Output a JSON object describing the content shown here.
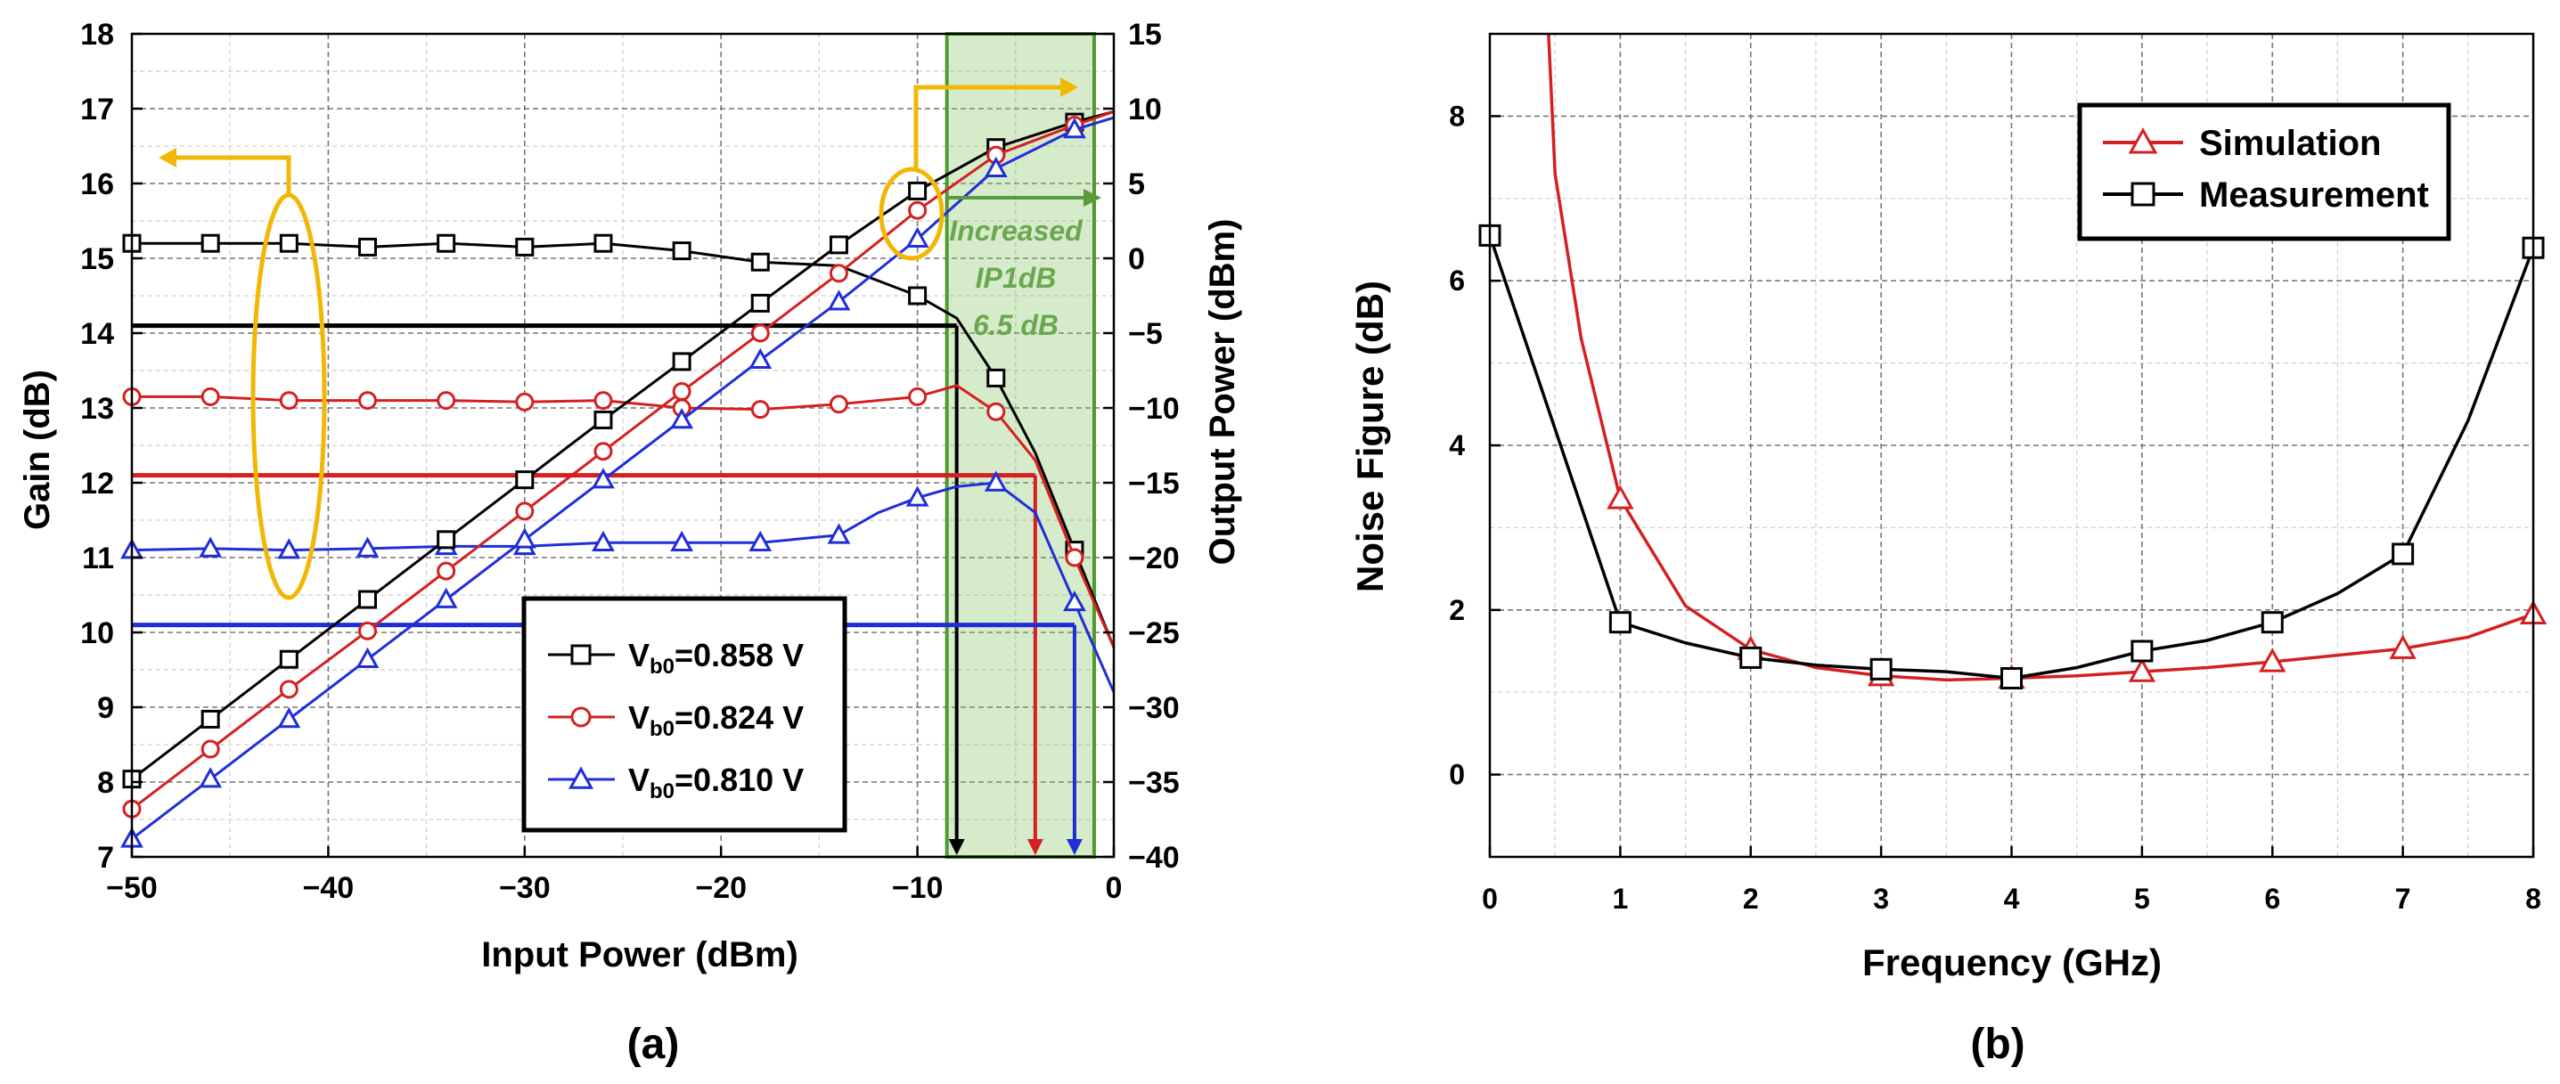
{
  "chart_data": [
    {
      "panel": "a",
      "panel_label": "(a)",
      "type": "line",
      "xlabel": "Input Power (dBm)",
      "ylabel_left": "Gain (dB)",
      "ylabel_right": "Output Power (dBm)",
      "xlim": [
        -50,
        0
      ],
      "ylim_left": [
        7,
        18
      ],
      "ylim_right": [
        -40,
        15
      ],
      "xticks": [
        -50,
        -40,
        -30,
        -20,
        -10,
        0
      ],
      "yticks_left": [
        7,
        8,
        9,
        10,
        11,
        12,
        13,
        14,
        15,
        16,
        17,
        18
      ],
      "yticks_right": [
        -40,
        -35,
        -30,
        -25,
        -20,
        -15,
        -10,
        -5,
        0,
        5,
        10,
        15
      ],
      "annotation": [
        "Increased",
        "IP1dB",
        "6.5 dB"
      ],
      "legend": [
        {
          "prefix": "V",
          "sub": "b0",
          "suffix": "=0.858 V",
          "color": "#000000",
          "marker": "square"
        },
        {
          "prefix": "V",
          "sub": "b0",
          "suffix": "=0.824 V",
          "color": "#d42020",
          "marker": "circle"
        },
        {
          "prefix": "V",
          "sub": "b0",
          "suffix": "=0.810 V",
          "color": "#1f2ed8",
          "marker": "triangle"
        }
      ],
      "series": [
        {
          "name": "gain_0.858V",
          "axis": "left",
          "color": "#000000",
          "marker": "square",
          "x": [
            -50,
            -46,
            -42,
            -38,
            -34,
            -30,
            -26,
            -22,
            -18,
            -14,
            -10,
            -8,
            -6,
            -4,
            -2,
            0
          ],
          "values": [
            15.2,
            15.2,
            15.2,
            15.15,
            15.2,
            15.15,
            15.2,
            15.1,
            14.95,
            14.9,
            14.5,
            14.2,
            13.4,
            12.4,
            11.1,
            9.8
          ],
          "marker_x": [
            -50,
            -46,
            -42,
            -38,
            -34,
            -30,
            -26,
            -22,
            -18,
            -10,
            -6,
            -2
          ]
        },
        {
          "name": "gain_0.824V",
          "axis": "left",
          "color": "#d42020",
          "marker": "circle",
          "x": [
            -50,
            -46,
            -42,
            -38,
            -34,
            -30,
            -26,
            -22,
            -18,
            -14,
            -10,
            -8,
            -6,
            -4,
            -2,
            0
          ],
          "values": [
            13.15,
            13.15,
            13.1,
            13.1,
            13.1,
            13.08,
            13.1,
            13.0,
            12.98,
            13.05,
            13.15,
            13.3,
            12.95,
            12.3,
            11.0,
            9.8
          ],
          "marker_x": [
            -50,
            -46,
            -42,
            -38,
            -34,
            -30,
            -26,
            -22,
            -18,
            -14,
            -10,
            -6,
            -2
          ]
        },
        {
          "name": "gain_0.810V",
          "axis": "left",
          "color": "#1f2ed8",
          "marker": "triangle",
          "x": [
            -50,
            -46,
            -42,
            -38,
            -34,
            -30,
            -26,
            -22,
            -18,
            -14,
            -12,
            -10,
            -8,
            -6,
            -4,
            -2,
            0
          ],
          "values": [
            11.1,
            11.12,
            11.1,
            11.12,
            11.15,
            11.15,
            11.2,
            11.2,
            11.2,
            11.3,
            11.6,
            11.8,
            11.95,
            12.0,
            11.6,
            10.4,
            9.2
          ],
          "marker_x": [
            -50,
            -46,
            -42,
            -38,
            -34,
            -30,
            -26,
            -22,
            -18,
            -14,
            -10,
            -6,
            -2
          ]
        },
        {
          "name": "pout_0.858V",
          "axis": "right",
          "color": "#000000",
          "marker": "square",
          "x": [
            -50,
            -46,
            -42,
            -38,
            -34,
            -30,
            -26,
            -22,
            -18,
            -14,
            -10,
            -6,
            -2,
            0
          ],
          "values": [
            -34.8,
            -30.8,
            -26.8,
            -22.8,
            -18.8,
            -14.8,
            -10.8,
            -6.9,
            -3.0,
            0.9,
            4.5,
            7.4,
            9.1,
            9.8
          ],
          "marker_x": [
            -50,
            -46,
            -42,
            -38,
            -34,
            -30,
            -26,
            -22,
            -18,
            -14,
            -10,
            -6,
            -2
          ]
        },
        {
          "name": "pout_0.824V",
          "axis": "right",
          "color": "#d42020",
          "marker": "circle",
          "x": [
            -50,
            -46,
            -42,
            -38,
            -34,
            -30,
            -26,
            -22,
            -18,
            -14,
            -10,
            -6,
            -2,
            0
          ],
          "values": [
            -36.8,
            -32.8,
            -28.8,
            -24.9,
            -20.9,
            -16.9,
            -12.9,
            -8.9,
            -5.0,
            -1.0,
            3.2,
            6.9,
            8.9,
            9.8
          ],
          "marker_x": [
            -50,
            -46,
            -42,
            -38,
            -34,
            -30,
            -26,
            -22,
            -18,
            -14,
            -10,
            -6,
            -2
          ]
        },
        {
          "name": "pout_0.810V",
          "axis": "right",
          "color": "#1f2ed8",
          "marker": "triangle",
          "x": [
            -50,
            -46,
            -42,
            -38,
            -34,
            -30,
            -26,
            -22,
            -18,
            -14,
            -10,
            -6,
            -2,
            0
          ],
          "values": [
            -38.8,
            -34.8,
            -30.8,
            -26.8,
            -22.8,
            -18.8,
            -14.8,
            -10.8,
            -6.8,
            -2.9,
            1.3,
            6.0,
            8.6,
            9.4
          ],
          "marker_x": [
            -50,
            -46,
            -42,
            -38,
            -34,
            -30,
            -26,
            -22,
            -18,
            -14,
            -10,
            -6,
            -2
          ]
        }
      ],
      "p1db_markers": [
        {
          "color": "#000000",
          "gain_level": 14.1,
          "x": -8
        },
        {
          "color": "#d42020",
          "gain_level": 12.1,
          "x": -4
        },
        {
          "color": "#1f2ed8",
          "gain_level": 10.1,
          "x": -2
        }
      ],
      "highlight_region_x": [
        -8.5,
        -1
      ]
    },
    {
      "panel": "b",
      "panel_label": "(b)",
      "type": "line",
      "xlabel": "Frequency (GHz)",
      "ylabel": "Noise Figure (dB)",
      "xlim": [
        0,
        8
      ],
      "ylim": [
        -1,
        9
      ],
      "xticks": [
        0,
        1,
        2,
        3,
        4,
        5,
        6,
        7,
        8
      ],
      "yticks": [
        0,
        2,
        4,
        6,
        8
      ],
      "legend": [
        "Simulation",
        "Measurement"
      ],
      "series": [
        {
          "name": "Simulation",
          "color": "#d42020",
          "marker": "triangle",
          "x": [
            0.45,
            0.5,
            0.7,
            1.0,
            1.5,
            2.0,
            2.5,
            3.0,
            3.5,
            4.0,
            4.5,
            5.0,
            5.5,
            6.0,
            6.5,
            7.0,
            7.5,
            8.0
          ],
          "values": [
            9.0,
            7.3,
            5.3,
            3.35,
            2.05,
            1.52,
            1.3,
            1.2,
            1.15,
            1.17,
            1.2,
            1.25,
            1.3,
            1.37,
            1.45,
            1.53,
            1.67,
            1.95
          ],
          "marker_x": [
            1,
            2,
            3,
            4,
            5,
            6,
            7,
            8
          ]
        },
        {
          "name": "Measurement",
          "color": "#000000",
          "marker": "square",
          "x": [
            0,
            0.5,
            1.0,
            1.5,
            2.0,
            2.5,
            3.0,
            3.5,
            4.0,
            4.5,
            5.0,
            5.5,
            6.0,
            6.5,
            7.0,
            7.5,
            8.0
          ],
          "values": [
            6.55,
            4.2,
            1.85,
            1.6,
            1.42,
            1.33,
            1.28,
            1.25,
            1.17,
            1.3,
            1.5,
            1.63,
            1.85,
            2.2,
            2.68,
            4.3,
            6.4
          ],
          "marker_x": [
            0,
            1,
            2,
            3,
            4,
            5,
            6,
            7,
            8
          ]
        }
      ]
    }
  ]
}
